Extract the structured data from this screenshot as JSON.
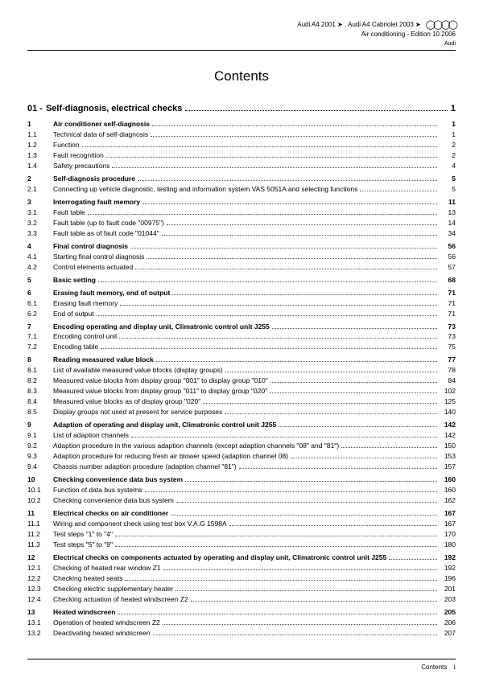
{
  "header": {
    "line1": "Audi A4 2001 ➤ , Audi A4 Cabriolet 2003 ➤",
    "line2": "Air conditioning - Edition 10.2006",
    "brand": "Audi"
  },
  "title": "Contents",
  "chapter": {
    "num": "01 -",
    "label": "Self-diagnosis, electrical checks",
    "page": "1"
  },
  "toc": [
    {
      "n": "1",
      "l": "Air conditioner self-diagnosis",
      "p": "1",
      "b": true
    },
    {
      "n": "1.1",
      "l": "Technical data of self-diagnosis",
      "p": "1"
    },
    {
      "n": "1.2",
      "l": "Function",
      "p": "2"
    },
    {
      "n": "1.3",
      "l": "Fault recognition",
      "p": "2"
    },
    {
      "n": "1.4",
      "l": "Safety precautions",
      "p": "4"
    },
    {
      "gap": true
    },
    {
      "n": "2",
      "l": "Self-diagnosis procedure",
      "p": "5",
      "b": true
    },
    {
      "n": "2.1",
      "l": "Connecting up vehicle diagnostic, testing and information system VAS 5051A and selecting functions",
      "p": "5"
    },
    {
      "gap": true
    },
    {
      "n": "3",
      "l": "Interrogating fault memory",
      "p": "11",
      "b": true
    },
    {
      "n": "3.1",
      "l": "Fault table",
      "p": "13"
    },
    {
      "n": "3.2",
      "l": "Fault table (up to fault code \"00975\")",
      "p": "14"
    },
    {
      "n": "3.3",
      "l": "Fault table as of fault code \"01044\"",
      "p": "34"
    },
    {
      "gap": true
    },
    {
      "n": "4",
      "l": "Final control diagnosis",
      "p": "56",
      "b": true
    },
    {
      "n": "4.1",
      "l": "Starting final control diagnosis",
      "p": "56"
    },
    {
      "n": "4.2",
      "l": "Control elements actuated",
      "p": "57"
    },
    {
      "gap": true
    },
    {
      "n": "5",
      "l": "Basic setting",
      "p": "68",
      "b": true
    },
    {
      "gap": true
    },
    {
      "n": "6",
      "l": "Erasing fault memory, end of output",
      "p": "71",
      "b": true
    },
    {
      "n": "6.1",
      "l": "Erasing fault memory",
      "p": "71"
    },
    {
      "n": "6.2",
      "l": "End of output",
      "p": "71"
    },
    {
      "gap": true
    },
    {
      "n": "7",
      "l": "Encoding operating and display unit, Climatronic control unit J255",
      "p": "73",
      "b": true
    },
    {
      "n": "7.1",
      "l": "Encoding control unit",
      "p": "73"
    },
    {
      "n": "7.2",
      "l": "Encoding table",
      "p": "75"
    },
    {
      "gap": true
    },
    {
      "n": "8",
      "l": "Reading measured value block",
      "p": "77",
      "b": true
    },
    {
      "n": "8.1",
      "l": "List of available measured value blocks (display groups)",
      "p": "78"
    },
    {
      "n": "8.2",
      "l": "Measured value blocks from display group \"001\" to display group \"010\"",
      "p": "84"
    },
    {
      "n": "8.3",
      "l": "Measured value blocks from display group \"011\" to display group \"020\"",
      "p": "102"
    },
    {
      "n": "8.4",
      "l": "Measured value blocks as of display group \"020\"",
      "p": "125"
    },
    {
      "n": "8.5",
      "l": "Display groups not used at present for service purposes",
      "p": "140"
    },
    {
      "gap": true
    },
    {
      "n": "9",
      "l": "Adaption of operating and display unit, Climatronic control unit J255",
      "p": "142",
      "b": true
    },
    {
      "n": "9.1",
      "l": "List of adaption channels",
      "p": "142"
    },
    {
      "n": "9.2",
      "l": "Adaption procedure in the various adaption channels (except adaption channels \"08\" and \"81\")",
      "p": "150"
    },
    {
      "n": "9.3",
      "l": "Adaption procedure for reducing fresh air blower speed (adaption channel 08)",
      "p": "153"
    },
    {
      "n": "9.4",
      "l": "Chassis number adaption procedure (adaption channel \"81\")",
      "p": "157"
    },
    {
      "gap": true
    },
    {
      "n": "10",
      "l": "Checking convenience data bus system",
      "p": "160",
      "b": true
    },
    {
      "n": "10.1",
      "l": "Function of data bus systems",
      "p": "160"
    },
    {
      "n": "10.2",
      "l": "Checking convenience data bus system",
      "p": "162"
    },
    {
      "gap": true
    },
    {
      "n": "11",
      "l": "Electrical checks on air conditioner",
      "p": "167",
      "b": true
    },
    {
      "n": "11.1",
      "l": "Wiring and component check using test box V.A.G 1598A",
      "p": "167"
    },
    {
      "n": "11.2",
      "l": "Test steps \"1\" to \"4\"",
      "p": "170"
    },
    {
      "n": "11.3",
      "l": "Test steps \"5\" to \"9\"",
      "p": "180"
    },
    {
      "gap": true
    },
    {
      "n": "12",
      "l": "Electrical checks on components actuated by operating and display unit, Climatronic control unit J255",
      "p": "192",
      "b": true
    },
    {
      "n": "12.1",
      "l": "Checking of heated rear window Z1",
      "p": "192"
    },
    {
      "n": "12.2",
      "l": "Checking heated seats",
      "p": "196"
    },
    {
      "n": "12.3",
      "l": "Checking electric supplementary heater",
      "p": "201"
    },
    {
      "n": "12.4",
      "l": "Checking actuation of heated windscreen Z2",
      "p": "203"
    },
    {
      "gap": true
    },
    {
      "n": "13",
      "l": "Heated windscreen",
      "p": "205",
      "b": true
    },
    {
      "n": "13.1",
      "l": "Operation of heated windscreen Z2",
      "p": "206"
    },
    {
      "n": "13.2",
      "l": "Deactivating heated windscreen",
      "p": "207"
    }
  ],
  "footer": {
    "label": "Contents",
    "page": "i"
  },
  "style": {
    "body_font_size": 8.5,
    "title_font_size": 17,
    "chapter_font_size": 11,
    "text_color": "#000000",
    "background": "#ffffff"
  }
}
